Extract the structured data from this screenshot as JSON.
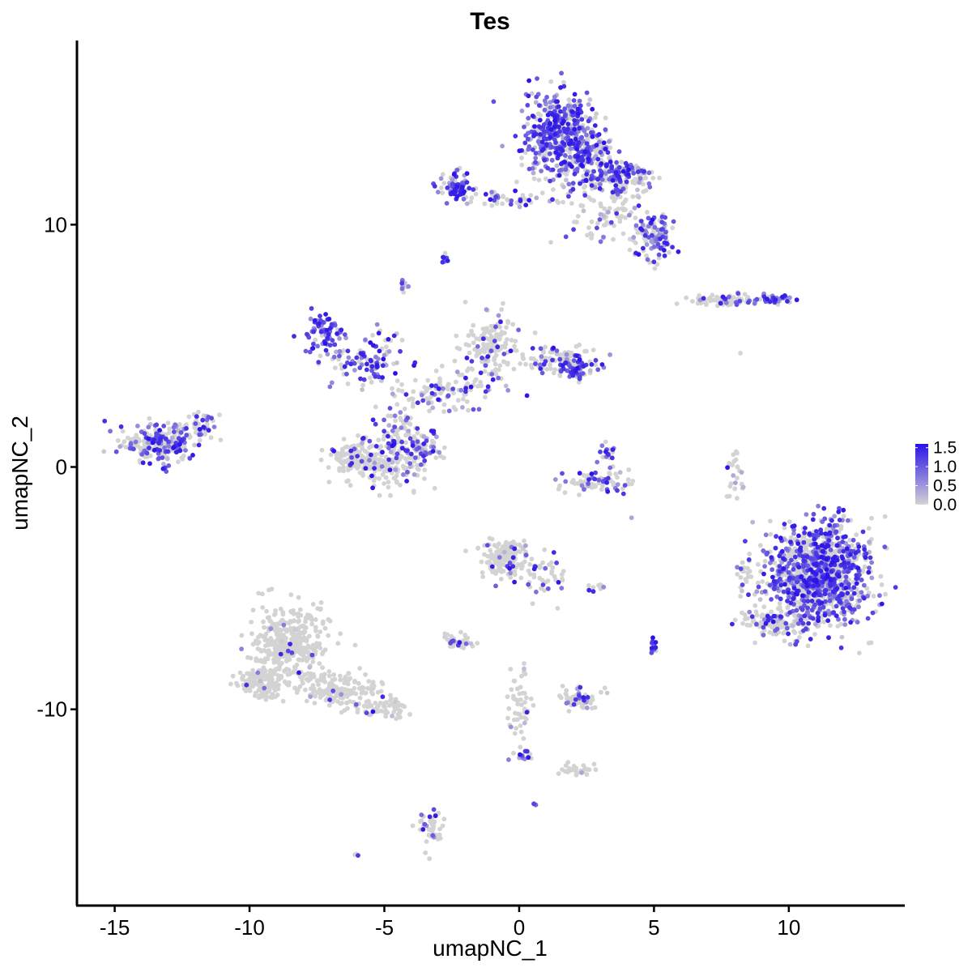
{
  "chart_data": {
    "type": "scatter",
    "title": "Tes",
    "xlabel": "umapNC_1",
    "ylabel": "umapNC_2",
    "xlim": [
      -16.4,
      14.3
    ],
    "ylim": [
      -18.1,
      17.6
    ],
    "x_ticks": [
      -15,
      -10,
      -5,
      0,
      5,
      10
    ],
    "x_tick_labels": [
      "-15",
      "-10",
      "-5",
      "0",
      "5",
      "10"
    ],
    "y_ticks": [
      -10,
      0,
      10
    ],
    "y_tick_labels": [
      "-10",
      "0",
      "10"
    ],
    "grid": false,
    "legend": {
      "placement": "right",
      "type": "colorbar",
      "min": 0.0,
      "max": 1.6,
      "ticks": [
        0.0,
        0.5,
        1.0,
        1.5
      ],
      "tick_labels": [
        "0.0",
        "0.5",
        "1.0",
        "1.5"
      ],
      "low_color": "#d3d3d3",
      "high_color": "#2a12e8"
    },
    "point_color_scale": [
      "#d3d3d3",
      "#2a12e8"
    ],
    "clusters": [
      {
        "center": [
          1.4,
          13.8
        ],
        "spread": [
          0.8,
          1.3
        ],
        "n": 420,
        "expr": 0.75
      },
      {
        "center": [
          2.6,
          13.0
        ],
        "spread": [
          0.6,
          0.9
        ],
        "n": 160,
        "expr": 0.55
      },
      {
        "center": [
          3.8,
          12.0
        ],
        "spread": [
          0.9,
          0.45
        ],
        "n": 150,
        "expr": 0.6
      },
      {
        "center": [
          5.0,
          9.5
        ],
        "spread": [
          0.6,
          0.7
        ],
        "n": 120,
        "expr": 0.55
      },
      {
        "center": [
          3.2,
          10.6
        ],
        "spread": [
          0.9,
          0.9
        ],
        "n": 90,
        "expr": 0.3
      },
      {
        "center": [
          -2.4,
          11.5
        ],
        "spread": [
          0.5,
          0.45
        ],
        "n": 70,
        "expr": 0.7
      },
      {
        "center": [
          -0.5,
          11.1
        ],
        "spread": [
          1.2,
          0.25
        ],
        "n": 50,
        "expr": 0.35
      },
      {
        "center": [
          -2.8,
          8.6
        ],
        "spread": [
          0.12,
          0.12
        ],
        "n": 10,
        "expr": 0.8
      },
      {
        "center": [
          -4.3,
          7.4
        ],
        "spread": [
          0.12,
          0.2
        ],
        "n": 10,
        "expr": 0.6
      },
      {
        "center": [
          7.7,
          6.9
        ],
        "spread": [
          1.0,
          0.18
        ],
        "n": 80,
        "expr": 0.2
      },
      {
        "center": [
          9.4,
          6.9
        ],
        "spread": [
          0.5,
          0.15
        ],
        "n": 40,
        "expr": 0.7
      },
      {
        "center": [
          -7.3,
          5.5
        ],
        "spread": [
          0.5,
          0.6
        ],
        "n": 80,
        "expr": 0.8
      },
      {
        "center": [
          -5.6,
          4.5
        ],
        "spread": [
          1.0,
          0.8
        ],
        "n": 100,
        "expr": 0.65
      },
      {
        "center": [
          -1.0,
          5.0
        ],
        "spread": [
          0.7,
          0.9
        ],
        "n": 150,
        "expr": 0.2
      },
      {
        "center": [
          1.5,
          4.4
        ],
        "spread": [
          0.9,
          0.5
        ],
        "n": 110,
        "expr": 0.3
      },
      {
        "center": [
          2.1,
          4.1
        ],
        "spread": [
          0.5,
          0.35
        ],
        "n": 60,
        "expr": 0.6
      },
      {
        "center": [
          -2.8,
          3.1
        ],
        "spread": [
          1.4,
          0.6
        ],
        "n": 110,
        "expr": 0.3
      },
      {
        "center": [
          -4.4,
          1.3
        ],
        "spread": [
          0.8,
          1.0
        ],
        "n": 110,
        "expr": 0.45
      },
      {
        "center": [
          -6.1,
          0.4
        ],
        "spread": [
          0.6,
          0.5
        ],
        "n": 90,
        "expr": 0.1
      },
      {
        "center": [
          -5.0,
          0.0
        ],
        "spread": [
          1.1,
          0.6
        ],
        "n": 140,
        "expr": 0.1
      },
      {
        "center": [
          -3.6,
          0.8
        ],
        "spread": [
          0.4,
          0.6
        ],
        "n": 50,
        "expr": 0.55
      },
      {
        "center": [
          -13.3,
          1.0
        ],
        "spread": [
          0.9,
          0.55
        ],
        "n": 240,
        "expr": 0.45
      },
      {
        "center": [
          -11.8,
          1.7
        ],
        "spread": [
          0.4,
          0.4
        ],
        "n": 40,
        "expr": 0.4
      },
      {
        "center": [
          2.9,
          -0.6
        ],
        "spread": [
          1.0,
          0.35
        ],
        "n": 80,
        "expr": 0.5
      },
      {
        "center": [
          3.3,
          0.6
        ],
        "spread": [
          0.3,
          0.4
        ],
        "n": 20,
        "expr": 0.55
      },
      {
        "center": [
          8.0,
          -0.3
        ],
        "spread": [
          0.25,
          0.9
        ],
        "n": 25,
        "expr": 0.3
      },
      {
        "center": [
          11.1,
          -4.4
        ],
        "spread": [
          1.4,
          1.5
        ],
        "n": 1100,
        "expr": 0.55
      },
      {
        "center": [
          9.5,
          -6.4
        ],
        "spread": [
          0.8,
          0.4
        ],
        "n": 120,
        "expr": 0.2
      },
      {
        "center": [
          8.4,
          -4.6
        ],
        "spread": [
          0.2,
          0.6
        ],
        "n": 20,
        "expr": 0.3
      },
      {
        "center": [
          -0.5,
          -3.8
        ],
        "spread": [
          0.7,
          0.55
        ],
        "n": 160,
        "expr": 0.12
      },
      {
        "center": [
          1.0,
          -4.6
        ],
        "spread": [
          0.6,
          0.6
        ],
        "n": 40,
        "expr": 0.2
      },
      {
        "center": [
          -2.3,
          -7.2
        ],
        "spread": [
          0.35,
          0.2
        ],
        "n": 40,
        "expr": 0.2
      },
      {
        "center": [
          2.8,
          -5.0
        ],
        "spread": [
          0.2,
          0.12
        ],
        "n": 10,
        "expr": 0.5
      },
      {
        "center": [
          5.0,
          -7.5
        ],
        "spread": [
          0.12,
          0.3
        ],
        "n": 15,
        "expr": 0.7
      },
      {
        "center": [
          2.3,
          -9.5
        ],
        "spread": [
          0.5,
          0.35
        ],
        "n": 60,
        "expr": 0.3
      },
      {
        "center": [
          -8.5,
          -7.2
        ],
        "spread": [
          1.0,
          1.1
        ],
        "n": 380,
        "expr": 0.03
      },
      {
        "center": [
          -9.6,
          -8.9
        ],
        "spread": [
          0.6,
          0.5
        ],
        "n": 140,
        "expr": 0.03
      },
      {
        "center": [
          -6.7,
          -9.2
        ],
        "spread": [
          1.3,
          0.5
        ],
        "n": 160,
        "expr": 0.03
      },
      {
        "center": [
          -5.0,
          -10.0
        ],
        "spread": [
          0.7,
          0.25
        ],
        "n": 50,
        "expr": 0.08
      },
      {
        "center": [
          0.0,
          -9.8
        ],
        "spread": [
          0.3,
          1.3
        ],
        "n": 50,
        "expr": 0.05
      },
      {
        "center": [
          0.1,
          -11.9
        ],
        "spread": [
          0.3,
          0.2
        ],
        "n": 15,
        "expr": 0.6
      },
      {
        "center": [
          2.1,
          -12.5
        ],
        "spread": [
          0.5,
          0.18
        ],
        "n": 30,
        "expr": 0.05
      },
      {
        "center": [
          -3.3,
          -14.9
        ],
        "spread": [
          0.3,
          0.6
        ],
        "n": 40,
        "expr": 0.15
      },
      {
        "center": [
          0.6,
          -13.9
        ],
        "spread": [
          0.06,
          0.06
        ],
        "n": 3,
        "expr": 0.8
      },
      {
        "center": [
          -6.0,
          -16.0
        ],
        "spread": [
          0.08,
          0.06
        ],
        "n": 3,
        "expr": 0.7
      },
      {
        "center": [
          4.1,
          -2.1
        ],
        "spread": [
          0.05,
          0.05
        ],
        "n": 1,
        "expr": 0.7
      },
      {
        "center": [
          8.2,
          4.7
        ],
        "spread": [
          0.05,
          0.05
        ],
        "n": 1,
        "expr": 0.05
      }
    ]
  }
}
